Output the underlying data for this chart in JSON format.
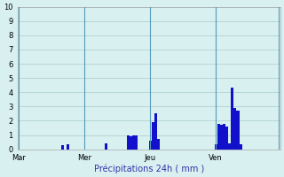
{
  "xlabel": "Précipitations 24h ( mm )",
  "background_color": "#d8f0f0",
  "bar_color": "#1111cc",
  "ylim": [
    0,
    10
  ],
  "yticks": [
    0,
    1,
    2,
    3,
    4,
    5,
    6,
    7,
    8,
    9,
    10
  ],
  "day_labels": [
    "Mar",
    "Mer",
    "Jeu",
    "Ven"
  ],
  "day_positions": [
    0,
    24,
    48,
    72
  ],
  "n_bars": 96,
  "bar_values": [
    0,
    0,
    0,
    0,
    0,
    0,
    0,
    0,
    0,
    0,
    0,
    0,
    0,
    0,
    0,
    0,
    0.3,
    0,
    0.35,
    0,
    0,
    0,
    0,
    0,
    0,
    0,
    0,
    0,
    0,
    0,
    0,
    0,
    0.4,
    0,
    0,
    0,
    0,
    0,
    0,
    0,
    1.0,
    0.9,
    1.0,
    1.0,
    0,
    0,
    0,
    0,
    0.6,
    1.9,
    2.5,
    0.7,
    0,
    0,
    0,
    0,
    0,
    0,
    0,
    0,
    0,
    0,
    0,
    0,
    0,
    0,
    0,
    0,
    0,
    0,
    0,
    0,
    0.35,
    1.8,
    1.7,
    1.8,
    1.6,
    0.4,
    4.3,
    2.9,
    2.7,
    0.35,
    0,
    0,
    0,
    0,
    0,
    0,
    0,
    0,
    0,
    0,
    0,
    0,
    0,
    0
  ],
  "vline_color": "#5599bb",
  "grid_color": "#aacccc"
}
